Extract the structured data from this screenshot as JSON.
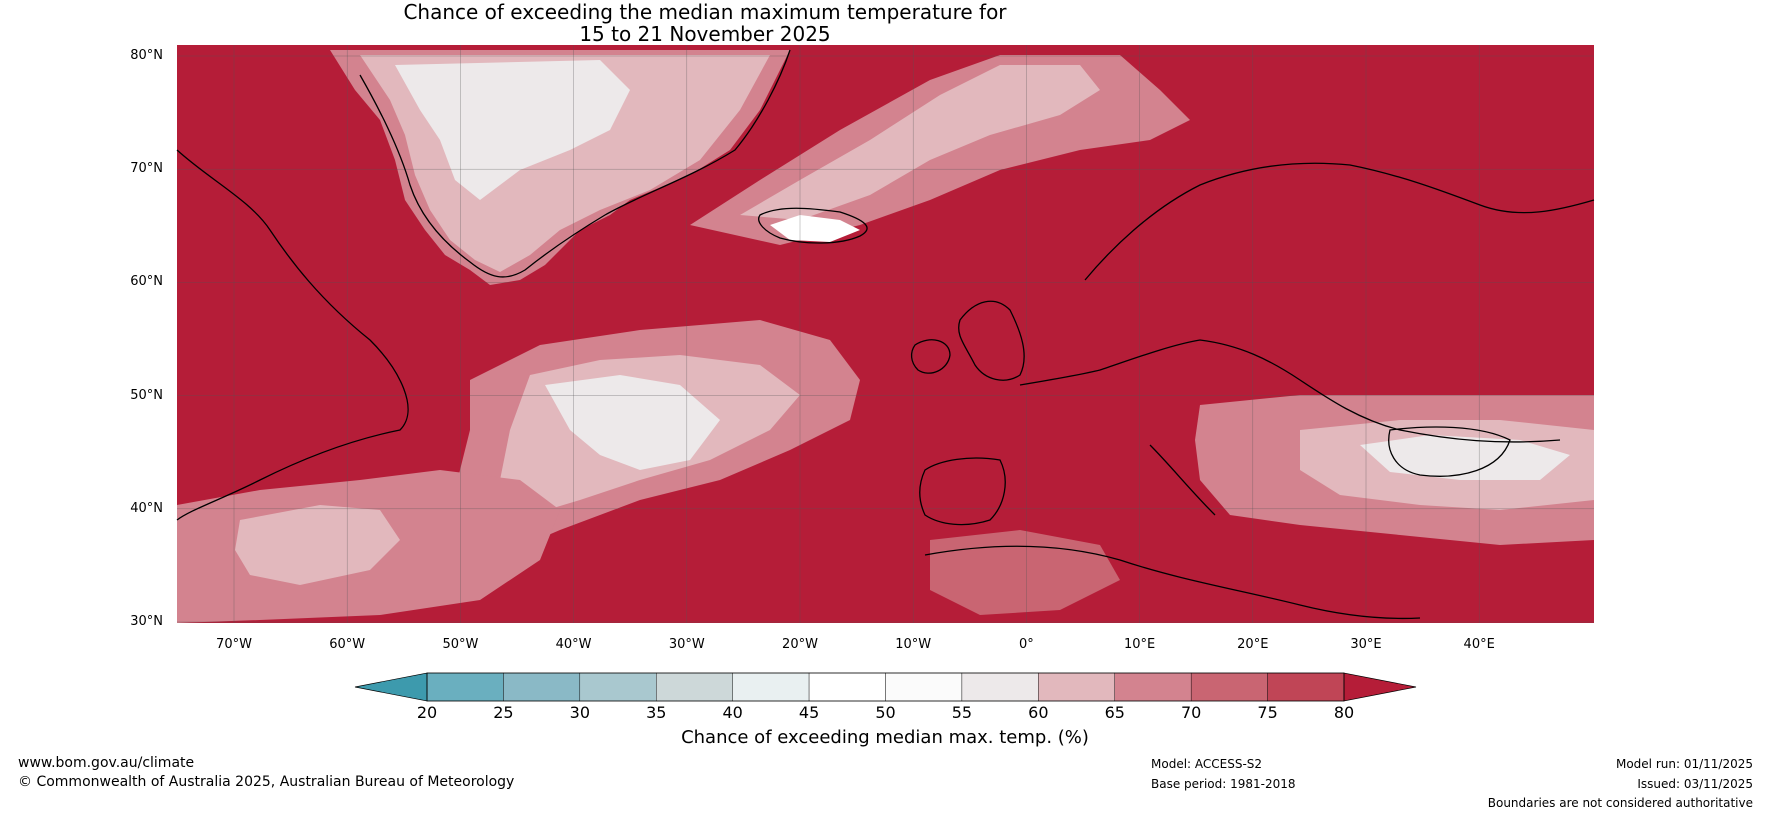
{
  "title_line1": "Chance of exceeding the median maximum temperature for",
  "title_line2": "15 to 21 November 2025",
  "lat_labels": [
    "80°N",
    "70°N",
    "60°N",
    "50°N",
    "40°N",
    "30°N"
  ],
  "lon_labels": [
    "70°W",
    "60°W",
    "50°W",
    "40°W",
    "30°W",
    "20°W",
    "10°W",
    "0°",
    "10°E",
    "20°E",
    "30°E",
    "40°E"
  ],
  "colorbar": {
    "ticks": [
      "20",
      "25",
      "30",
      "35",
      "40",
      "45",
      "50",
      "55",
      "60",
      "65",
      "70",
      "75",
      "80"
    ],
    "colors": [
      "#3d9aad",
      "#6aafbf",
      "#8ab9c6",
      "#a9c8cf",
      "#cdd8d9",
      "#e9f0f1",
      "#ffffff",
      "#fbfbfb",
      "#ede9ea",
      "#e2b8bd",
      "#d3838f",
      "#c96572",
      "#c04556",
      "#b51d38"
    ],
    "title": "Chance of exceeding median max. temp. (%)"
  },
  "map_colors": {
    "high": "#b51d38",
    "mid": "#c96572",
    "lowmid": "#d3838f",
    "light": "#e2b8bd",
    "pale": "#ede9ea",
    "white": "#ffffff"
  },
  "footer": {
    "url": "www.bom.gov.au/climate",
    "copyright": "© Commonwealth of Australia 2025, Australian Bureau of Meteorology",
    "model": "Model: ACCESS-S2",
    "base_period": "Base period: 1981-2018",
    "model_run": "Model run: 01/11/2025",
    "issued": "Issued: 03/11/2025",
    "disclaimer": "Boundaries are not considered authoritative"
  }
}
